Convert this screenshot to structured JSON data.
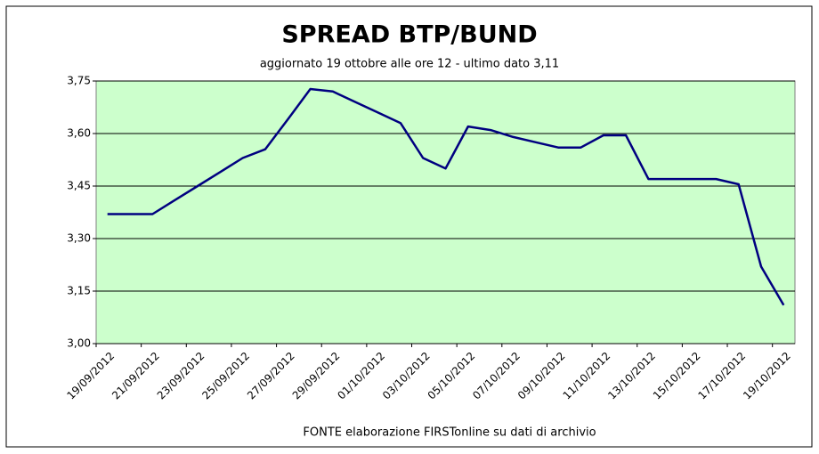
{
  "chart_data": {
    "type": "line",
    "title": "SPREAD  BTP/BUND",
    "subtitle": "aggiornato 19 ottobre alle ore 12 - ultimo dato 3,11",
    "source": "FONTE elaborazione FIRSTonline su dati di archivio",
    "categories": [
      "19/09/2012",
      null,
      "21/09/2012",
      null,
      "23/09/2012",
      null,
      "25/09/2012",
      null,
      "27/09/2012",
      null,
      "29/09/2012",
      null,
      "01/10/2012",
      null,
      "03/10/2012",
      null,
      "05/10/2012",
      null,
      "07/10/2012",
      null,
      "09/10/2012",
      null,
      "11/10/2012",
      null,
      "13/10/2012",
      null,
      "15/10/2012",
      null,
      "17/10/2012",
      null,
      "19/10/2012"
    ],
    "series": [
      {
        "name": "Spread",
        "color": "#000080",
        "values": [
          3.37,
          3.37,
          3.37,
          3.41,
          3.45,
          3.49,
          3.53,
          3.555,
          3.64,
          3.727,
          3.72,
          3.69,
          3.66,
          3.63,
          3.53,
          3.5,
          3.62,
          3.61,
          3.59,
          3.575,
          3.56,
          3.56,
          3.595,
          3.595,
          3.47,
          3.47,
          3.47,
          3.47,
          3.455,
          3.22,
          3.11
        ]
      }
    ],
    "ylim": [
      3.0,
      3.75
    ],
    "yticks": [
      {
        "value": 3.0,
        "label": "3,00"
      },
      {
        "value": 3.15,
        "label": "3,15"
      },
      {
        "value": 3.3,
        "label": "3,30"
      },
      {
        "value": 3.45,
        "label": "3,45"
      },
      {
        "value": 3.6,
        "label": "3,60"
      },
      {
        "value": 3.75,
        "label": "3,75"
      }
    ],
    "grid": true,
    "plot_background": "#ccffcc"
  }
}
